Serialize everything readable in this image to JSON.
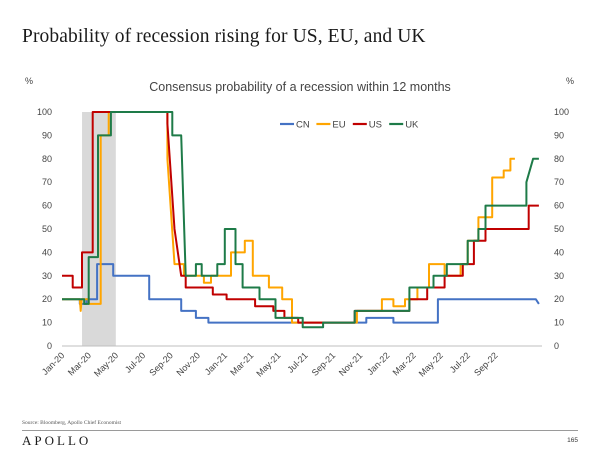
{
  "header": {
    "title": "Probability of recession rising for US, EU, and UK"
  },
  "footer": {
    "source": "Source: Bloomberg, Apollo Chief Economist",
    "logo": "APOLLO",
    "page_number": "165"
  },
  "chart_data": {
    "type": "line",
    "title": "Consensus probability of a recession within 12 months",
    "y_unit_left": "%",
    "y_unit_right": "%",
    "ylim": [
      0,
      100
    ],
    "yticks": [
      0,
      10,
      20,
      30,
      40,
      50,
      60,
      70,
      80,
      90,
      100
    ],
    "x_range": [
      "2020-01-01",
      "2022-12-15"
    ],
    "xtick_labels": [
      {
        "label": "Jan-20",
        "date": "2020-01-01"
      },
      {
        "label": "Mar-20",
        "date": "2020-03-01"
      },
      {
        "label": "May-20",
        "date": "2020-05-01"
      },
      {
        "label": "Jul-20",
        "date": "2020-07-01"
      },
      {
        "label": "Sep-20",
        "date": "2020-09-01"
      },
      {
        "label": "Nov-20",
        "date": "2020-11-01"
      },
      {
        "label": "Jan-21",
        "date": "2021-01-01"
      },
      {
        "label": "Mar-21",
        "date": "2021-03-01"
      },
      {
        "label": "May-21",
        "date": "2021-05-01"
      },
      {
        "label": "Jul-21",
        "date": "2021-07-01"
      },
      {
        "label": "Sep-21",
        "date": "2021-09-01"
      },
      {
        "label": "Nov-21",
        "date": "2021-11-01"
      },
      {
        "label": "Jan-22",
        "date": "2022-01-01"
      },
      {
        "label": "Mar-22",
        "date": "2022-03-01"
      },
      {
        "label": "May-22",
        "date": "2022-05-01"
      },
      {
        "label": "Jul-22",
        "date": "2022-07-01"
      },
      {
        "label": "Sep-22",
        "date": "2022-09-01"
      }
    ],
    "shaded_period": {
      "start": "2020-02-15",
      "end": "2020-05-01",
      "color": "#d9d9d9"
    },
    "legend_position": "top-right",
    "series": [
      {
        "name": "CN",
        "color": "#4472c4",
        "points": [
          [
            "2020-01-01",
            20
          ],
          [
            "2020-02-10",
            20
          ],
          [
            "2020-02-10",
            18
          ],
          [
            "2020-02-25",
            18
          ],
          [
            "2020-02-25",
            20
          ],
          [
            "2020-03-20",
            20
          ],
          [
            "2020-03-20",
            35
          ],
          [
            "2020-04-25",
            35
          ],
          [
            "2020-04-25",
            30
          ],
          [
            "2020-07-15",
            30
          ],
          [
            "2020-07-15",
            20
          ],
          [
            "2020-09-25",
            20
          ],
          [
            "2020-09-25",
            15
          ],
          [
            "2020-10-28",
            15
          ],
          [
            "2020-10-28",
            12
          ],
          [
            "2020-11-25",
            12
          ],
          [
            "2020-11-25",
            10
          ],
          [
            "2021-09-01",
            10
          ],
          [
            "2021-11-15",
            10
          ],
          [
            "2021-11-15",
            12
          ],
          [
            "2022-01-15",
            12
          ],
          [
            "2022-01-15",
            10
          ],
          [
            "2022-04-25",
            10
          ],
          [
            "2022-04-25",
            20
          ],
          [
            "2022-12-01",
            20
          ],
          [
            "2022-12-08",
            18
          ]
        ]
      },
      {
        "name": "EU",
        "color": "#ffa500",
        "points": [
          [
            "2020-01-01",
            20
          ],
          [
            "2020-02-10",
            20
          ],
          [
            "2020-02-12",
            15
          ],
          [
            "2020-02-14",
            20
          ],
          [
            "2020-03-01",
            20
          ],
          [
            "2020-03-01",
            18
          ],
          [
            "2020-03-28",
            18
          ],
          [
            "2020-03-28",
            90
          ],
          [
            "2020-04-15",
            90
          ],
          [
            "2020-04-15",
            100
          ],
          [
            "2020-08-25",
            100
          ],
          [
            "2020-08-25",
            80
          ],
          [
            "2020-09-10",
            35
          ],
          [
            "2020-10-01",
            35
          ],
          [
            "2020-10-01",
            30
          ],
          [
            "2020-11-15",
            30
          ],
          [
            "2020-11-15",
            27
          ],
          [
            "2020-12-01",
            27
          ],
          [
            "2020-12-01",
            30
          ],
          [
            "2021-01-15",
            30
          ],
          [
            "2021-01-15",
            40
          ],
          [
            "2021-02-15",
            40
          ],
          [
            "2021-02-15",
            45
          ],
          [
            "2021-03-05",
            45
          ],
          [
            "2021-03-05",
            30
          ],
          [
            "2021-04-10",
            30
          ],
          [
            "2021-04-10",
            25
          ],
          [
            "2021-05-10",
            25
          ],
          [
            "2021-05-10",
            20
          ],
          [
            "2021-06-01",
            20
          ],
          [
            "2021-06-01",
            10
          ],
          [
            "2021-10-25",
            10
          ],
          [
            "2021-10-25",
            15
          ],
          [
            "2021-12-20",
            15
          ],
          [
            "2021-12-20",
            20
          ],
          [
            "2022-01-15",
            20
          ],
          [
            "2022-01-15",
            17
          ],
          [
            "2022-02-10",
            17
          ],
          [
            "2022-02-10",
            20
          ],
          [
            "2022-03-10",
            20
          ],
          [
            "2022-03-10",
            25
          ],
          [
            "2022-04-05",
            25
          ],
          [
            "2022-04-05",
            35
          ],
          [
            "2022-05-10",
            35
          ],
          [
            "2022-05-10",
            30
          ],
          [
            "2022-06-15",
            30
          ],
          [
            "2022-06-15",
            35
          ],
          [
            "2022-07-01",
            35
          ],
          [
            "2022-07-01",
            45
          ],
          [
            "2022-07-25",
            45
          ],
          [
            "2022-07-25",
            55
          ],
          [
            "2022-08-25",
            55
          ],
          [
            "2022-08-25",
            72
          ],
          [
            "2022-09-20",
            72
          ],
          [
            "2022-09-20",
            75
          ],
          [
            "2022-10-05",
            75
          ],
          [
            "2022-10-05",
            80
          ],
          [
            "2022-10-15",
            80
          ]
        ]
      },
      {
        "name": "US",
        "color": "#c00000",
        "points": [
          [
            "2020-01-01",
            30
          ],
          [
            "2020-01-25",
            30
          ],
          [
            "2020-01-25",
            25
          ],
          [
            "2020-02-15",
            25
          ],
          [
            "2020-02-15",
            40
          ],
          [
            "2020-03-10",
            40
          ],
          [
            "2020-03-10",
            100
          ],
          [
            "2020-08-25",
            100
          ],
          [
            "2020-08-25",
            95
          ],
          [
            "2020-09-10",
            50
          ],
          [
            "2020-09-25",
            30
          ],
          [
            "2020-10-05",
            30
          ],
          [
            "2020-10-05",
            25
          ],
          [
            "2020-12-05",
            25
          ],
          [
            "2020-12-05",
            22
          ],
          [
            "2021-01-05",
            22
          ],
          [
            "2021-01-05",
            20
          ],
          [
            "2021-03-10",
            20
          ],
          [
            "2021-03-10",
            17
          ],
          [
            "2021-04-20",
            17
          ],
          [
            "2021-04-20",
            15
          ],
          [
            "2021-05-15",
            15
          ],
          [
            "2021-05-15",
            12
          ],
          [
            "2021-06-15",
            12
          ],
          [
            "2021-06-15",
            10
          ],
          [
            "2021-10-20",
            10
          ],
          [
            "2021-10-20",
            15
          ],
          [
            "2022-02-20",
            15
          ],
          [
            "2022-02-20",
            20
          ],
          [
            "2022-04-01",
            20
          ],
          [
            "2022-04-01",
            25
          ],
          [
            "2022-05-10",
            25
          ],
          [
            "2022-05-10",
            30
          ],
          [
            "2022-06-20",
            30
          ],
          [
            "2022-06-20",
            35
          ],
          [
            "2022-07-15",
            35
          ],
          [
            "2022-07-15",
            45
          ],
          [
            "2022-08-10",
            45
          ],
          [
            "2022-08-10",
            50
          ],
          [
            "2022-09-05",
            50
          ],
          [
            "2022-09-05",
            50
          ],
          [
            "2022-11-15",
            50
          ],
          [
            "2022-11-15",
            60
          ],
          [
            "2022-12-08",
            60
          ]
        ]
      },
      {
        "name": "UK",
        "color": "#1e7b48",
        "points": [
          [
            "2020-01-01",
            20
          ],
          [
            "2020-02-20",
            20
          ],
          [
            "2020-02-20",
            18
          ],
          [
            "2020-03-01",
            18
          ],
          [
            "2020-03-01",
            38
          ],
          [
            "2020-03-22",
            38
          ],
          [
            "2020-03-22",
            90
          ],
          [
            "2020-04-20",
            90
          ],
          [
            "2020-04-20",
            100
          ],
          [
            "2020-09-05",
            100
          ],
          [
            "2020-09-05",
            90
          ],
          [
            "2020-09-25",
            90
          ],
          [
            "2020-10-05",
            30
          ],
          [
            "2020-10-28",
            30
          ],
          [
            "2020-10-28",
            35
          ],
          [
            "2020-11-10",
            35
          ],
          [
            "2020-11-10",
            30
          ],
          [
            "2020-12-15",
            30
          ],
          [
            "2020-12-15",
            35
          ],
          [
            "2021-01-01",
            35
          ],
          [
            "2021-01-01",
            50
          ],
          [
            "2021-01-25",
            50
          ],
          [
            "2021-01-25",
            35
          ],
          [
            "2021-02-10",
            35
          ],
          [
            "2021-02-10",
            25
          ],
          [
            "2021-03-20",
            25
          ],
          [
            "2021-03-20",
            20
          ],
          [
            "2021-04-25",
            20
          ],
          [
            "2021-04-25",
            12
          ],
          [
            "2021-06-25",
            12
          ],
          [
            "2021-06-25",
            8
          ],
          [
            "2021-08-10",
            8
          ],
          [
            "2021-08-10",
            10
          ],
          [
            "2021-10-20",
            10
          ],
          [
            "2021-10-20",
            15
          ],
          [
            "2022-02-20",
            15
          ],
          [
            "2022-02-20",
            25
          ],
          [
            "2022-04-15",
            25
          ],
          [
            "2022-04-15",
            30
          ],
          [
            "2022-05-15",
            30
          ],
          [
            "2022-05-15",
            35
          ],
          [
            "2022-07-01",
            35
          ],
          [
            "2022-07-01",
            45
          ],
          [
            "2022-07-25",
            45
          ],
          [
            "2022-07-25",
            50
          ],
          [
            "2022-08-10",
            50
          ],
          [
            "2022-08-10",
            60
          ],
          [
            "2022-11-10",
            60
          ],
          [
            "2022-11-10",
            70
          ],
          [
            "2022-11-25",
            80
          ],
          [
            "2022-12-08",
            80
          ]
        ]
      }
    ]
  }
}
